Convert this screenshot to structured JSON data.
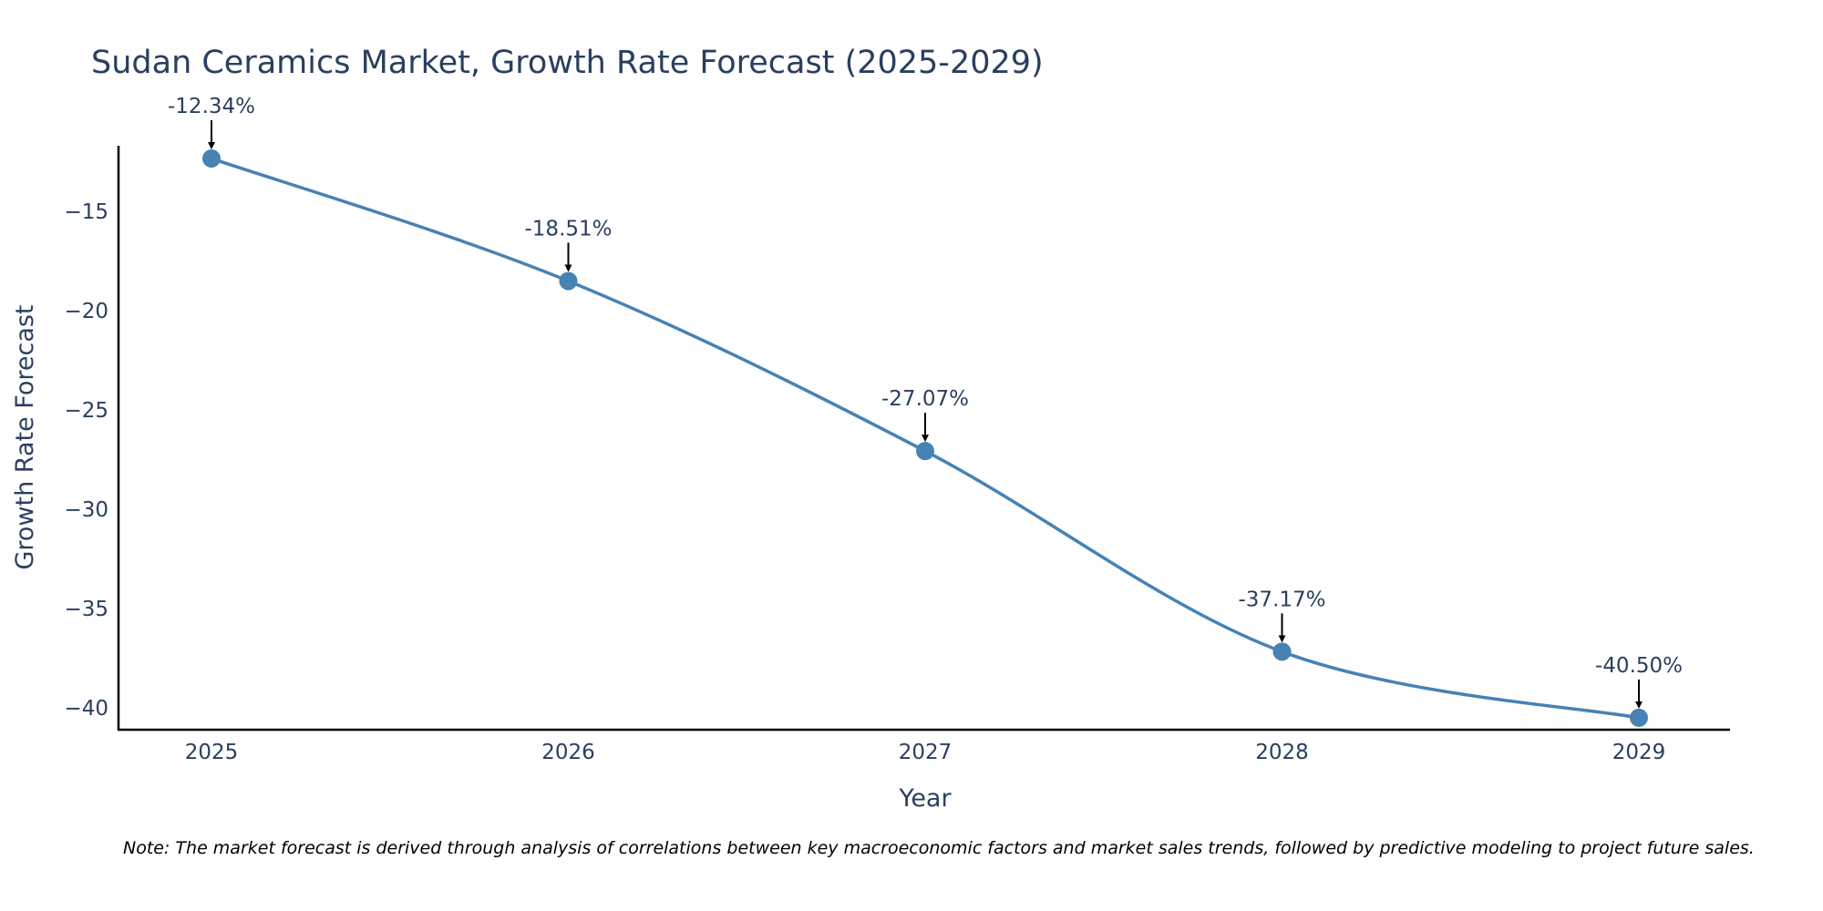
{
  "chart_data": {
    "type": "line",
    "title": "Sudan Ceramics Market, Growth Rate Forecast (2025-2029)",
    "xlabel": "Year",
    "ylabel": "Growth Rate Forecast",
    "x": [
      "2025",
      "2026",
      "2027",
      "2028",
      "2029"
    ],
    "series": [
      {
        "name": "Growth Rate Forecast",
        "values": [
          -12.34,
          -18.51,
          -27.07,
          -37.17,
          -40.5
        ]
      }
    ],
    "annotations": [
      "-12.34%",
      "-18.51%",
      "-27.07%",
      "-37.17%",
      "-40.50%"
    ],
    "yticks": [
      -15,
      -20,
      -25,
      -30,
      -35,
      -40
    ],
    "ytick_labels": [
      "−15",
      "−20",
      "−25",
      "−30",
      "−35",
      "−40"
    ],
    "ylim": [
      -41.1,
      -11.7
    ],
    "grid": false,
    "line_color": "#4682b4",
    "marker_color": "#4682b4"
  },
  "note": "Note: The market forecast is derived through analysis of correlations between key macroeconomic factors and market sales trends, followed by predictive modeling to project future sales."
}
